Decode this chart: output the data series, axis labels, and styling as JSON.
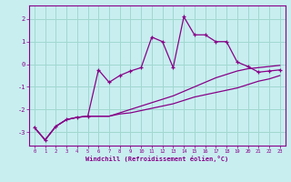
{
  "xlabel": "Windchill (Refroidissement éolien,°C)",
  "background_color": "#c8eef0",
  "grid_color": "#a0d8d0",
  "line_color": "#880088",
  "xlim": [
    -0.5,
    23.5
  ],
  "ylim": [
    -3.6,
    2.6
  ],
  "yticks": [
    -3,
    -2,
    -1,
    0,
    1,
    2
  ],
  "xticks": [
    0,
    1,
    2,
    3,
    4,
    5,
    6,
    7,
    8,
    9,
    10,
    11,
    12,
    13,
    14,
    15,
    16,
    17,
    18,
    19,
    20,
    21,
    22,
    23
  ],
  "line1_x": [
    0,
    1,
    2,
    3,
    4,
    5,
    6,
    7,
    8,
    9,
    10,
    11,
    12,
    13,
    14,
    15,
    16,
    17,
    18,
    19,
    20,
    21,
    22,
    23
  ],
  "line1_y": [
    -2.8,
    -3.35,
    -2.75,
    -2.45,
    -2.35,
    -2.3,
    -2.3,
    -2.3,
    -2.2,
    -2.15,
    -2.05,
    -1.95,
    -1.85,
    -1.75,
    -1.6,
    -1.45,
    -1.35,
    -1.25,
    -1.15,
    -1.05,
    -0.9,
    -0.75,
    -0.65,
    -0.5
  ],
  "line2_x": [
    0,
    1,
    2,
    3,
    4,
    5,
    6,
    7,
    8,
    9,
    10,
    11,
    12,
    13,
    14,
    15,
    16,
    17,
    18,
    19,
    20,
    21,
    22,
    23
  ],
  "line2_y": [
    -2.8,
    -3.35,
    -2.75,
    -2.45,
    -2.35,
    -2.3,
    -2.3,
    -2.3,
    -2.15,
    -2.0,
    -1.85,
    -1.7,
    -1.55,
    -1.4,
    -1.2,
    -1.0,
    -0.8,
    -0.6,
    -0.45,
    -0.3,
    -0.2,
    -0.15,
    -0.1,
    -0.05
  ],
  "zigzag_x": [
    0,
    1,
    2,
    3,
    4,
    5,
    6,
    7,
    8,
    9,
    10,
    11,
    12,
    13,
    14,
    15,
    16,
    17,
    18,
    19,
    20,
    21,
    22,
    23
  ],
  "zigzag_y": [
    -2.8,
    -3.35,
    -2.75,
    -2.45,
    -2.35,
    -2.3,
    -0.25,
    -0.8,
    -0.5,
    -0.3,
    -0.15,
    1.2,
    1.0,
    -0.15,
    2.1,
    1.3,
    1.3,
    1.0,
    1.0,
    0.1,
    -0.1,
    -0.35,
    -0.3,
    -0.25
  ]
}
